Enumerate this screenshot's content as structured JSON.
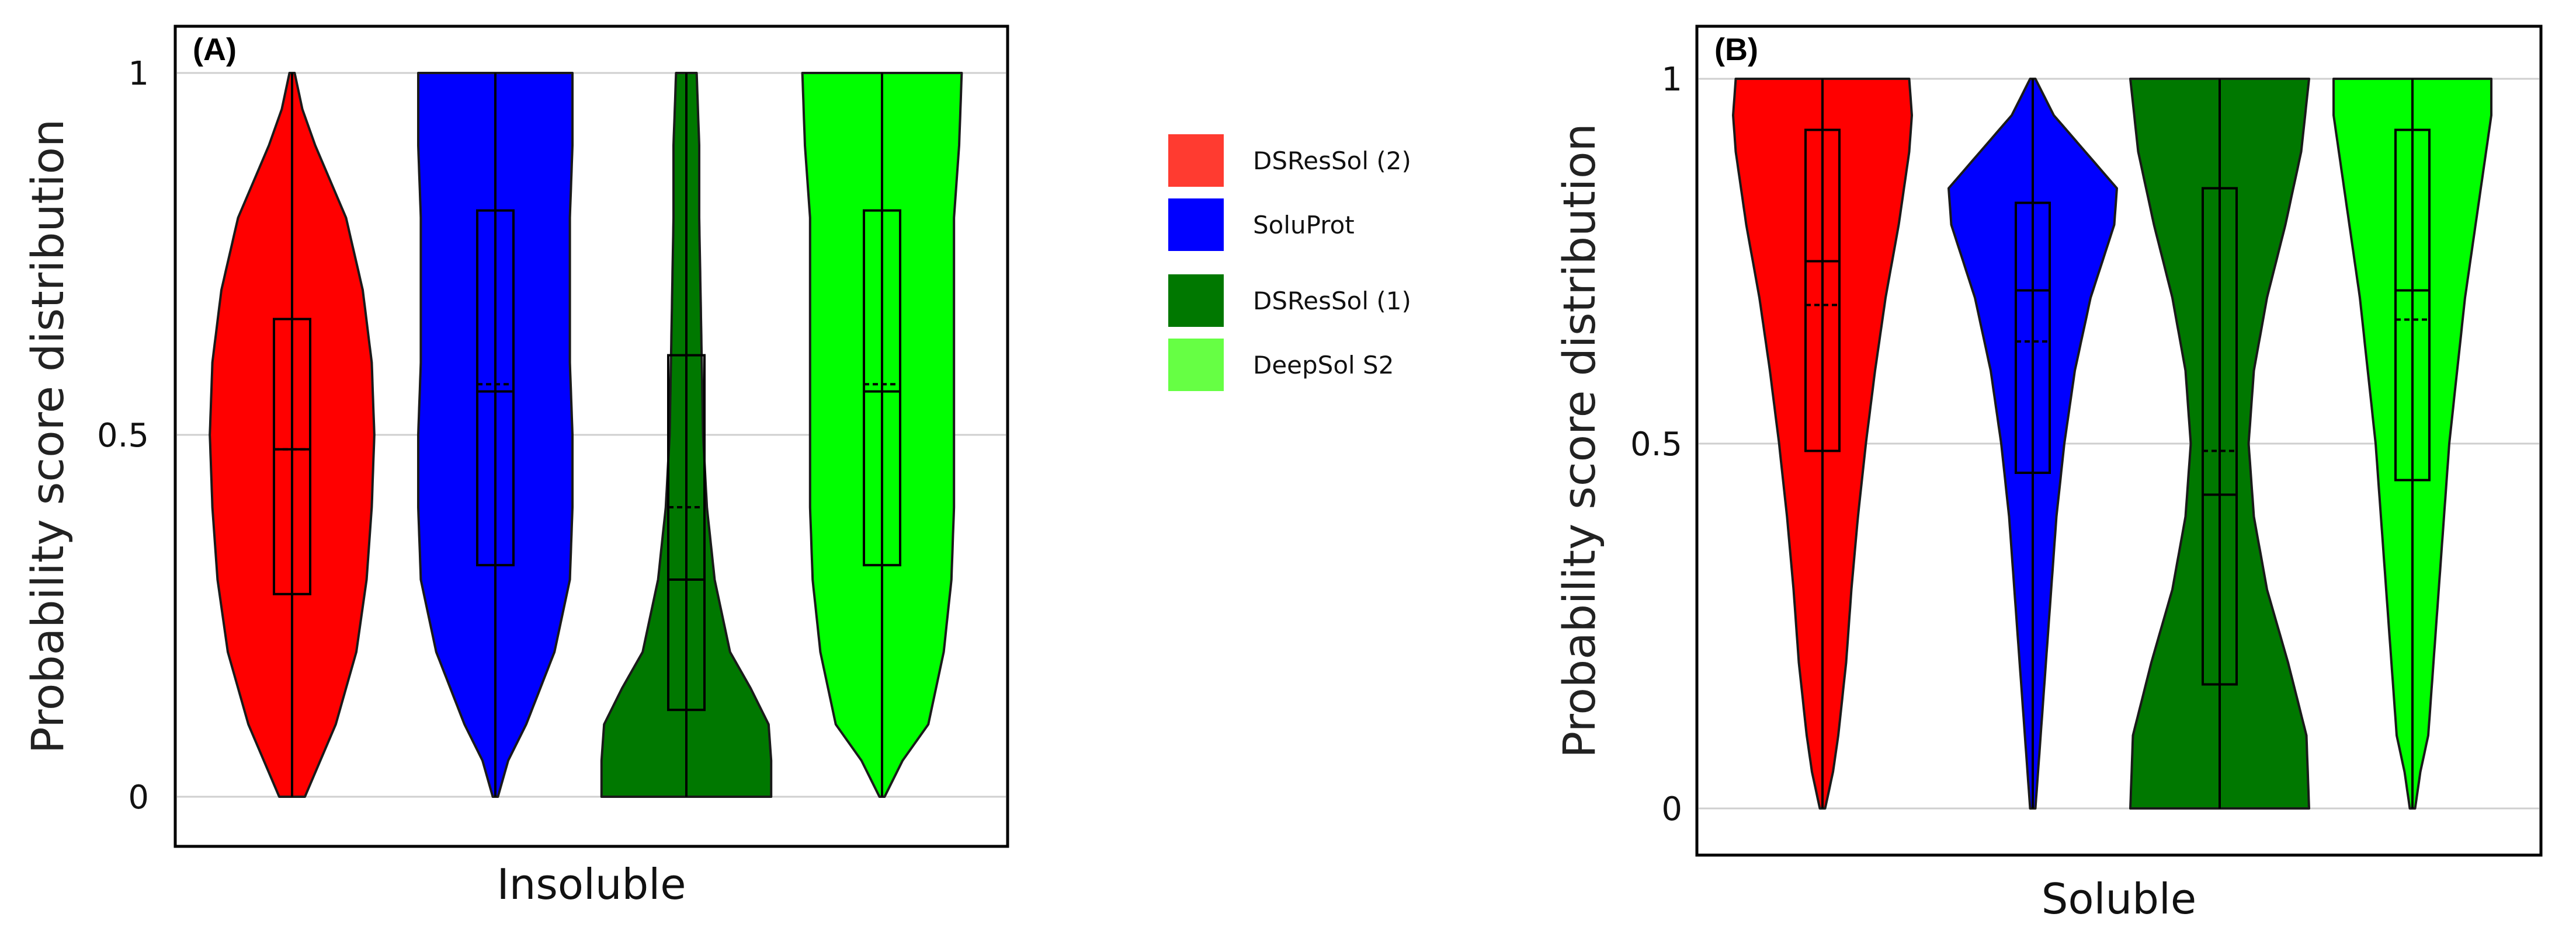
{
  "colors": {
    "DSResSol (2)": "#ff0000",
    "SoluProt": "#0000ff",
    "DSResSol (1)": "#007800",
    "DeepSol S2": "#00ff00"
  },
  "legend": {
    "items": [
      {
        "label": "DSResSol (2)",
        "color": "#ff3b30"
      },
      {
        "label": "SoluProt",
        "color": "#0000ff"
      },
      {
        "label": "DSResSol (1)",
        "color": "#007800"
      },
      {
        "label": "DeepSol S2",
        "color": "#66ff44"
      }
    ]
  },
  "chart_data": [
    {
      "type": "violin",
      "panel": "(A)",
      "xlabel": "Insoluble",
      "ylabel": "Probability score distribution",
      "ylim": [
        0,
        1
      ],
      "yticks": [
        {
          "value": 1,
          "label": "1"
        },
        {
          "value": 0.5,
          "label": "0.5"
        },
        {
          "value": 0,
          "label": "0"
        }
      ],
      "grid": true,
      "series": [
        {
          "name": "DSResSol (2)",
          "min": 0,
          "max": 1,
          "q1": 0.28,
          "median": 0.48,
          "mean": 0.48,
          "q3": 0.66,
          "density": [
            [
              0,
              0.1
            ],
            [
              0.1,
              0.34
            ],
            [
              0.2,
              0.5
            ],
            [
              0.3,
              0.58
            ],
            [
              0.4,
              0.62
            ],
            [
              0.5,
              0.64
            ],
            [
              0.6,
              0.62
            ],
            [
              0.7,
              0.55
            ],
            [
              0.8,
              0.42
            ],
            [
              0.9,
              0.18
            ],
            [
              0.95,
              0.08
            ],
            [
              1,
              0.02
            ]
          ]
        },
        {
          "name": "SoluProt",
          "min": 0,
          "max": 1,
          "q1": 0.32,
          "median": 0.56,
          "mean": 0.57,
          "q3": 0.81,
          "density": [
            [
              0,
              0.02
            ],
            [
              0.05,
              0.1
            ],
            [
              0.1,
              0.24
            ],
            [
              0.2,
              0.46
            ],
            [
              0.3,
              0.58
            ],
            [
              0.4,
              0.6
            ],
            [
              0.5,
              0.6
            ],
            [
              0.6,
              0.58
            ],
            [
              0.7,
              0.58
            ],
            [
              0.8,
              0.58
            ],
            [
              0.9,
              0.6
            ],
            [
              1,
              0.6
            ]
          ]
        },
        {
          "name": "DSResSol (1)",
          "min": 0,
          "max": 1,
          "q1": 0.12,
          "median": 0.3,
          "mean": 0.4,
          "q3": 0.61,
          "density": [
            [
              0,
              0.66
            ],
            [
              0.05,
              0.66
            ],
            [
              0.1,
              0.64
            ],
            [
              0.15,
              0.5
            ],
            [
              0.2,
              0.34
            ],
            [
              0.3,
              0.22
            ],
            [
              0.4,
              0.16
            ],
            [
              0.5,
              0.13
            ],
            [
              0.6,
              0.12
            ],
            [
              0.7,
              0.11
            ],
            [
              0.8,
              0.1
            ],
            [
              0.9,
              0.1
            ],
            [
              1,
              0.08
            ]
          ]
        },
        {
          "name": "DeepSol S2",
          "min": 0,
          "max": 1,
          "q1": 0.32,
          "median": 0.56,
          "mean": 0.57,
          "q3": 0.81,
          "density": [
            [
              0,
              0.02
            ],
            [
              0.05,
              0.16
            ],
            [
              0.1,
              0.36
            ],
            [
              0.2,
              0.48
            ],
            [
              0.3,
              0.54
            ],
            [
              0.4,
              0.56
            ],
            [
              0.5,
              0.56
            ],
            [
              0.6,
              0.56
            ],
            [
              0.7,
              0.56
            ],
            [
              0.8,
              0.56
            ],
            [
              0.9,
              0.6
            ],
            [
              1,
              0.62
            ]
          ]
        }
      ]
    },
    {
      "type": "violin",
      "panel": "(B)",
      "xlabel": "Soluble",
      "ylabel": "Probability score distribution",
      "ylim": [
        0,
        1
      ],
      "yticks": [
        {
          "value": 1,
          "label": "1"
        },
        {
          "value": 0.5,
          "label": "0.5"
        },
        {
          "value": 0,
          "label": "0"
        }
      ],
      "grid": true,
      "series": [
        {
          "name": "DSResSol (2)",
          "min": 0,
          "max": 1,
          "q1": 0.49,
          "median": 0.75,
          "mean": 0.69,
          "q3": 0.93,
          "density": [
            [
              0,
              0.02
            ],
            [
              0.05,
              0.08
            ],
            [
              0.1,
              0.12
            ],
            [
              0.2,
              0.18
            ],
            [
              0.3,
              0.22
            ],
            [
              0.4,
              0.27
            ],
            [
              0.5,
              0.33
            ],
            [
              0.6,
              0.4
            ],
            [
              0.7,
              0.48
            ],
            [
              0.8,
              0.58
            ],
            [
              0.9,
              0.66
            ],
            [
              0.95,
              0.68
            ],
            [
              1,
              0.66
            ]
          ]
        },
        {
          "name": "SoluProt",
          "min": 0,
          "max": 1,
          "q1": 0.46,
          "median": 0.71,
          "mean": 0.64,
          "q3": 0.83,
          "density": [
            [
              0,
              0.02
            ],
            [
              0.1,
              0.06
            ],
            [
              0.2,
              0.1
            ],
            [
              0.3,
              0.14
            ],
            [
              0.4,
              0.18
            ],
            [
              0.5,
              0.24
            ],
            [
              0.6,
              0.32
            ],
            [
              0.7,
              0.44
            ],
            [
              0.8,
              0.62
            ],
            [
              0.85,
              0.64
            ],
            [
              0.9,
              0.4
            ],
            [
              0.95,
              0.16
            ],
            [
              1,
              0.02
            ]
          ]
        },
        {
          "name": "DSResSol (1)",
          "min": 0,
          "max": 1,
          "q1": 0.17,
          "median": 0.43,
          "mean": 0.49,
          "q3": 0.85,
          "density": [
            [
              0,
              0.68
            ],
            [
              0.1,
              0.66
            ],
            [
              0.2,
              0.52
            ],
            [
              0.3,
              0.36
            ],
            [
              0.4,
              0.26
            ],
            [
              0.5,
              0.22
            ],
            [
              0.6,
              0.26
            ],
            [
              0.7,
              0.36
            ],
            [
              0.8,
              0.5
            ],
            [
              0.9,
              0.62
            ],
            [
              1,
              0.68
            ]
          ]
        },
        {
          "name": "DeepSol S2",
          "min": 0,
          "max": 1,
          "q1": 0.45,
          "median": 0.71,
          "mean": 0.67,
          "q3": 0.93,
          "density": [
            [
              0,
              0.02
            ],
            [
              0.05,
              0.06
            ],
            [
              0.1,
              0.12
            ],
            [
              0.2,
              0.16
            ],
            [
              0.3,
              0.2
            ],
            [
              0.4,
              0.24
            ],
            [
              0.5,
              0.28
            ],
            [
              0.6,
              0.34
            ],
            [
              0.7,
              0.4
            ],
            [
              0.8,
              0.48
            ],
            [
              0.9,
              0.56
            ],
            [
              0.95,
              0.6
            ],
            [
              1,
              0.6
            ]
          ]
        }
      ]
    }
  ]
}
